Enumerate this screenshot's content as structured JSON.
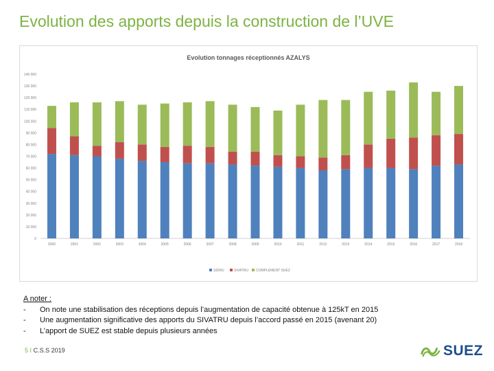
{
  "slide": {
    "title": "Evolution des apports depuis la construction de l’UVE"
  },
  "colors": {
    "title": "#7cb342",
    "sidru": "#4f81bd",
    "sivatru": "#c0504d",
    "complement_suez": "#9bbb59"
  },
  "chart_data": {
    "type": "bar",
    "stacked": true,
    "title": "Evolution tonnages réceptionnés AZALYS",
    "categories": [
      "2000",
      "2001",
      "2002",
      "2003",
      "2004",
      "2005",
      "2006",
      "2007",
      "2008",
      "2009",
      "2010",
      "2011",
      "2012",
      "2013",
      "2014",
      "2015",
      "2016",
      "2017",
      "2018"
    ],
    "series": [
      {
        "name": "SIDRU",
        "values": [
          72000,
          71000,
          70000,
          68000,
          66000,
          65000,
          64000,
          64000,
          63000,
          62000,
          61000,
          60000,
          58000,
          59000,
          60000,
          60000,
          59000,
          62000,
          63000
        ]
      },
      {
        "name": "SIVATRU",
        "values": [
          22000,
          16000,
          9000,
          14000,
          14000,
          13000,
          15000,
          14000,
          11000,
          12000,
          10000,
          10000,
          11000,
          12000,
          20000,
          25000,
          27000,
          26000,
          26000
        ]
      },
      {
        "name": "COMPLEMENT SUEZ",
        "values": [
          19000,
          29000,
          37000,
          35000,
          34000,
          37000,
          37000,
          39000,
          40000,
          38000,
          38000,
          44000,
          49000,
          47000,
          45000,
          41000,
          47000,
          37000,
          41000
        ]
      }
    ],
    "yticks": [
      "0",
      "10 000",
      "20 000",
      "30 000",
      "40 000",
      "50 000",
      "60 000",
      "70 000",
      "80 000",
      "90 000",
      "100 000",
      "110 000",
      "120 000",
      "130 000",
      "140 000"
    ],
    "ylim": [
      0,
      140000
    ],
    "grid": false,
    "legend_position": "bottom"
  },
  "notes": {
    "heading": "A noter :",
    "bullet": "-",
    "items": [
      "On note une stabilisation des réceptions depuis l’augmentation de capacité obtenue à 125kT en 2015",
      "Une augmentation significative des apports du SIVATRU depuis l’accord passé en 2015 (avenant 20)",
      "L’apport de SUEZ est stable depuis plusieurs années"
    ]
  },
  "footer": {
    "page_number": "5",
    "separator": "I",
    "text": "C.S.S 2019"
  },
  "logo": {
    "text": "SUEZ",
    "icon": "suez-swirl-icon"
  }
}
